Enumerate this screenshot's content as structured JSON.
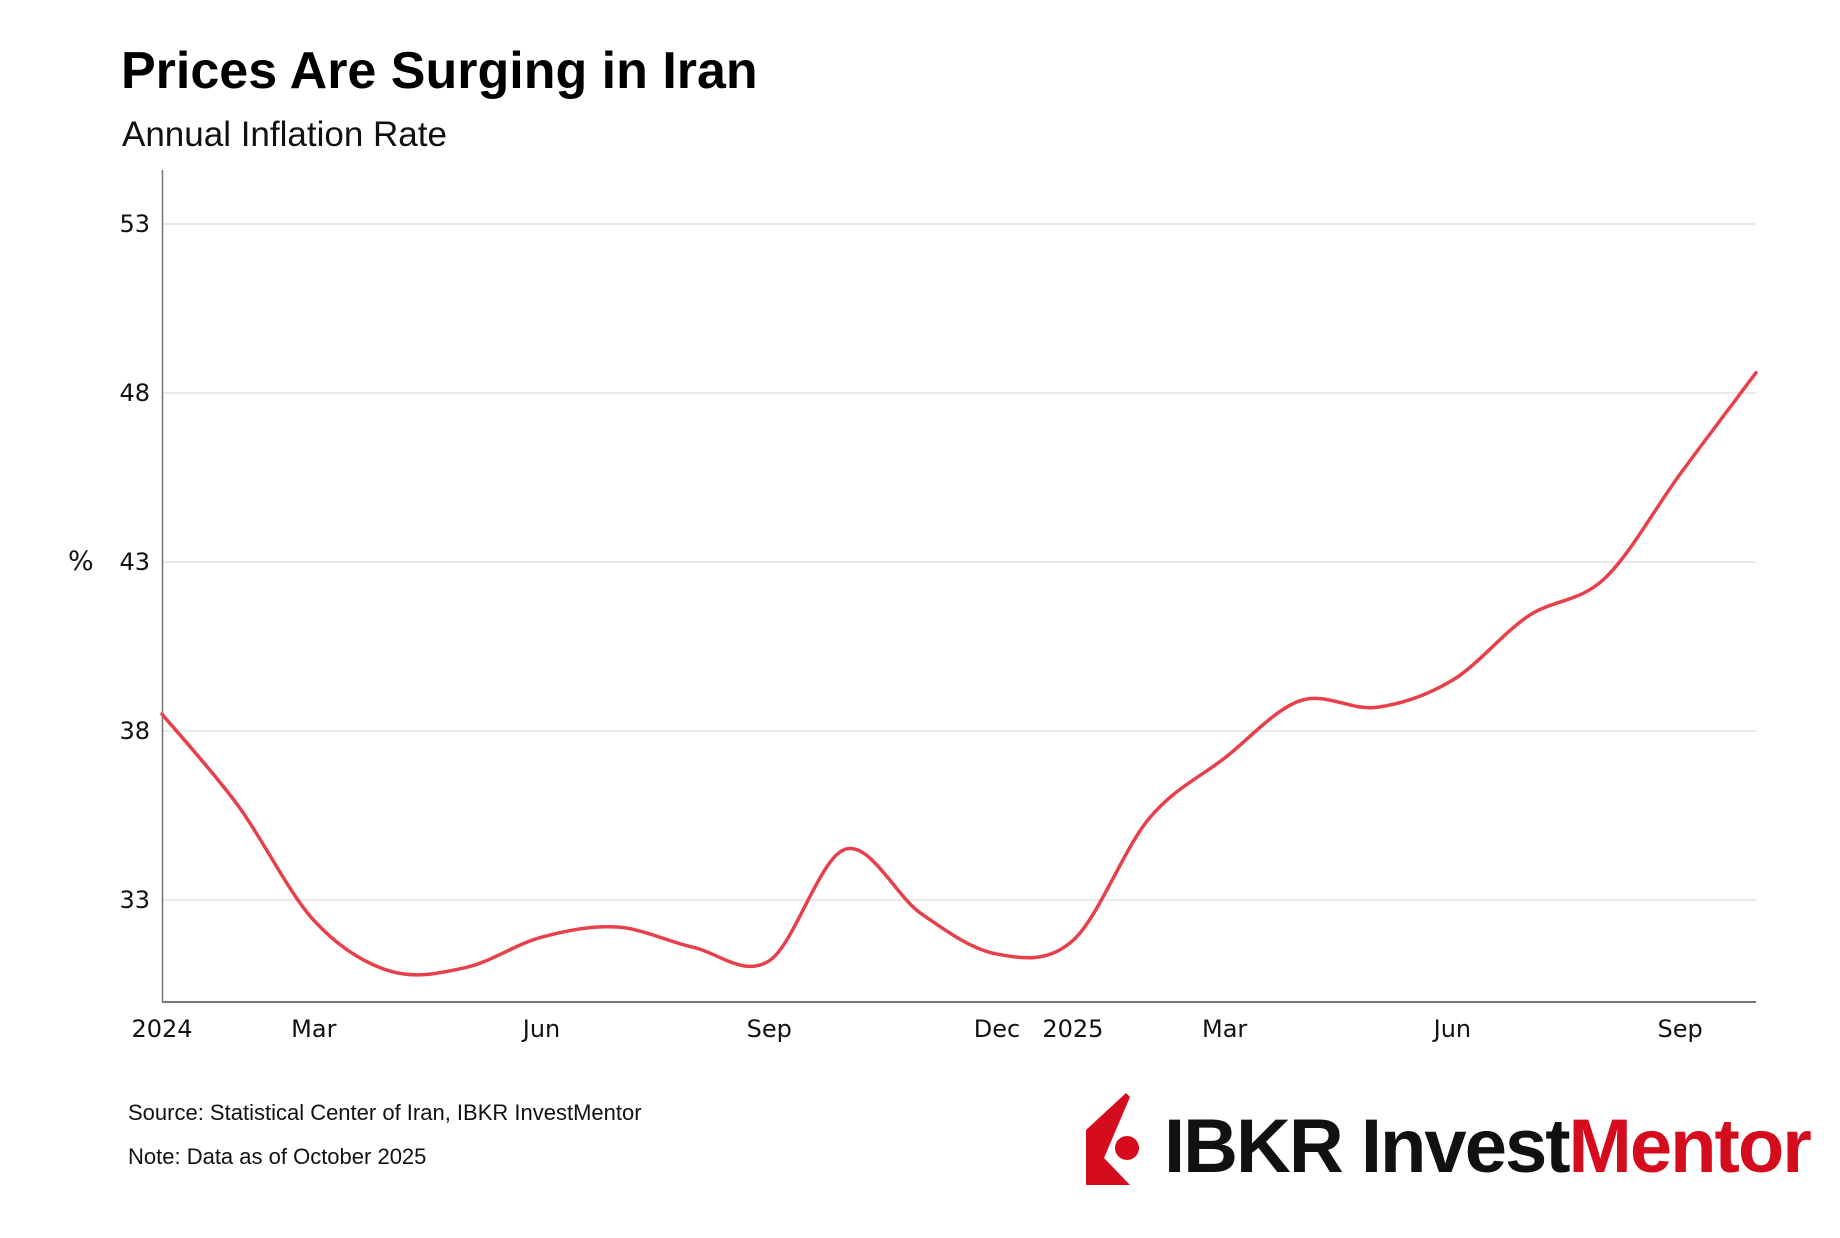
{
  "chart_data": {
    "type": "line",
    "title": "Prices Are Surging in Iran",
    "subtitle": "Annual Inflation Rate",
    "ylabel": "%",
    "xlabel": "",
    "ylim": [
      30,
      54.5
    ],
    "yticks": [
      33,
      38,
      43,
      48,
      53
    ],
    "grid": "horizontal",
    "x": [
      "2024-01",
      "2024-02",
      "2024-03",
      "2024-04",
      "2024-05",
      "2024-06",
      "2024-07",
      "2024-08",
      "2024-09",
      "2024-10",
      "2024-11",
      "2024-12",
      "2025-01",
      "2025-02",
      "2025-03",
      "2025-04",
      "2025-05",
      "2025-06",
      "2025-07",
      "2025-08",
      "2025-09",
      "2025-10"
    ],
    "xticks": [
      {
        "at": "2024-01",
        "label": "2024"
      },
      {
        "at": "2024-03",
        "label": "Mar"
      },
      {
        "at": "2024-06",
        "label": "Jun"
      },
      {
        "at": "2024-09",
        "label": "Sep"
      },
      {
        "at": "2024-12",
        "label": "Dec"
      },
      {
        "at": "2025-01",
        "label": "2025"
      },
      {
        "at": "2025-03",
        "label": "Mar"
      },
      {
        "at": "2025-06",
        "label": "Jun"
      },
      {
        "at": "2025-09",
        "label": "Sep"
      }
    ],
    "series": [
      {
        "values": [
          38.5,
          35.8,
          32.4,
          30.9,
          31.0,
          31.9,
          32.2,
          31.6,
          31.2,
          34.5,
          32.6,
          31.4,
          31.8,
          35.4,
          37.2,
          38.9,
          38.7,
          39.5,
          41.4,
          42.5,
          45.6,
          48.6
        ],
        "color": "#e8404a"
      }
    ]
  },
  "footer": {
    "source": "Source: Statistical Center of Iran, IBKR InvestMentor",
    "note": "Note: Data as of October 2025"
  },
  "logo": {
    "part1": "IBKR Invest",
    "part2": "Mentor",
    "dark_color": "#111111",
    "red_color": "#d50c1e"
  }
}
